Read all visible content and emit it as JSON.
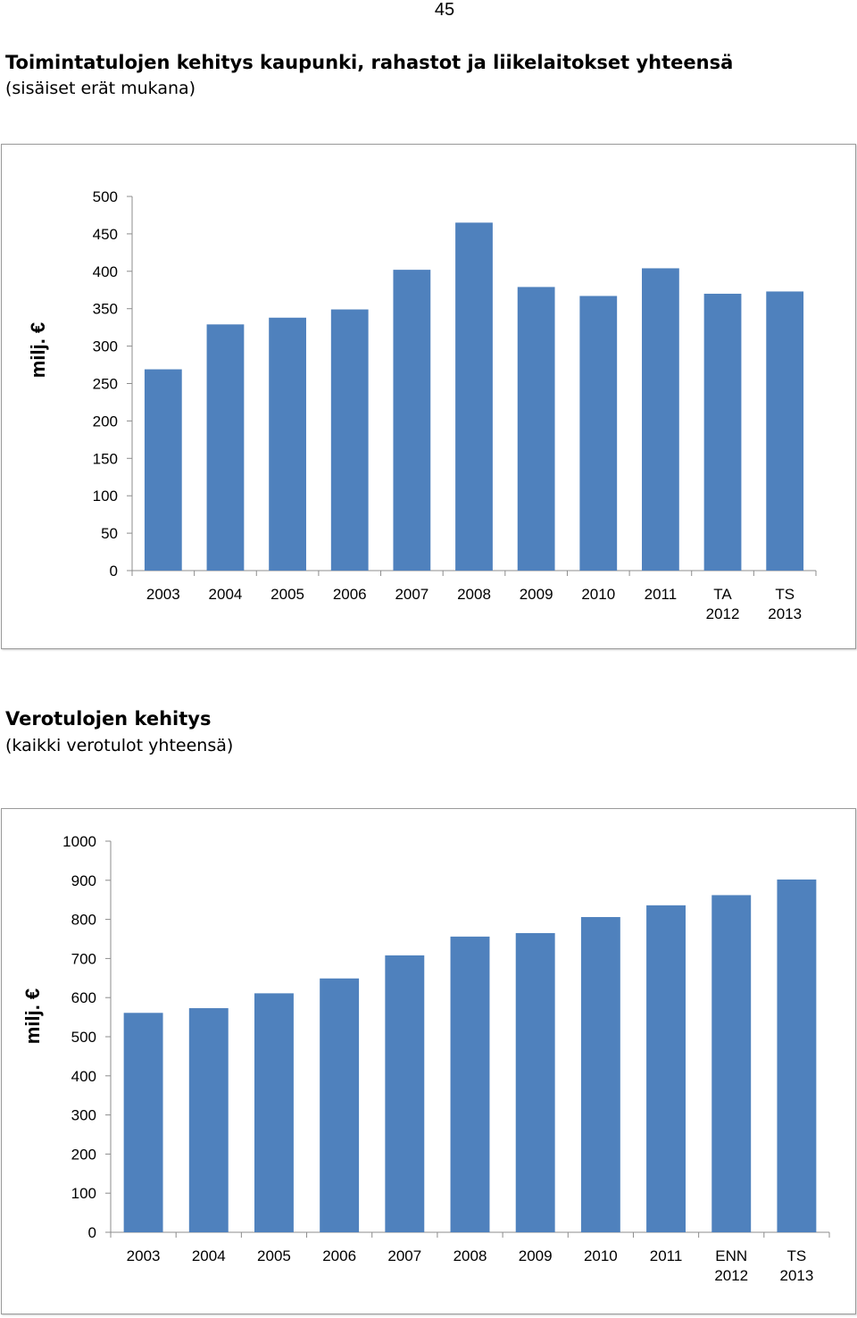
{
  "page_number": "45",
  "sections": [
    {
      "title": "Toimintatulojen kehitys kaupunki, rahastot ja liikelaitokset yhteensä",
      "subtitle": "(sisäiset erät mukana)"
    },
    {
      "title": "Verotulojen kehitys",
      "subtitle": "(kaikki verotulot yhteensä)"
    }
  ],
  "chart_data": [
    {
      "type": "bar",
      "title": "Toimintatulojen kehitys kaupunki, rahastot ja liikelaitokset yhteensä",
      "subtitle": "(sisäiset erät mukana)",
      "ylabel": "milj. €",
      "xlabel": "",
      "categories": [
        [
          "2003"
        ],
        [
          "2004"
        ],
        [
          "2005"
        ],
        [
          "2006"
        ],
        [
          "2007"
        ],
        [
          "2008"
        ],
        [
          "2009"
        ],
        [
          "2010"
        ],
        [
          "2011"
        ],
        [
          "TA",
          "2012"
        ],
        [
          "TS",
          "2013"
        ]
      ],
      "values": [
        269,
        329,
        338,
        349,
        402,
        465,
        379,
        367,
        404,
        370,
        373
      ],
      "ylim": [
        0,
        500
      ],
      "yticks": [
        0,
        50,
        100,
        150,
        200,
        250,
        300,
        350,
        400,
        450,
        500
      ],
      "grid": false,
      "legend": "none",
      "bar_color": "#4f81bd"
    },
    {
      "type": "bar",
      "title": "Verotulojen kehitys",
      "subtitle": "(kaikki verotulot yhteensä)",
      "ylabel": "milj. €",
      "xlabel": "",
      "categories": [
        [
          "2003"
        ],
        [
          "2004"
        ],
        [
          "2005"
        ],
        [
          "2006"
        ],
        [
          "2007"
        ],
        [
          "2008"
        ],
        [
          "2009"
        ],
        [
          "2010"
        ],
        [
          "2011"
        ],
        [
          "ENN",
          "2012"
        ],
        [
          "TS",
          "2013"
        ]
      ],
      "values": [
        561,
        573,
        611,
        649,
        708,
        756,
        765,
        806,
        836,
        862,
        902
      ],
      "ylim": [
        0,
        1000
      ],
      "yticks": [
        0,
        100,
        200,
        300,
        400,
        500,
        600,
        700,
        800,
        900,
        1000
      ],
      "grid": false,
      "legend": "none",
      "bar_color": "#4f81bd"
    }
  ]
}
